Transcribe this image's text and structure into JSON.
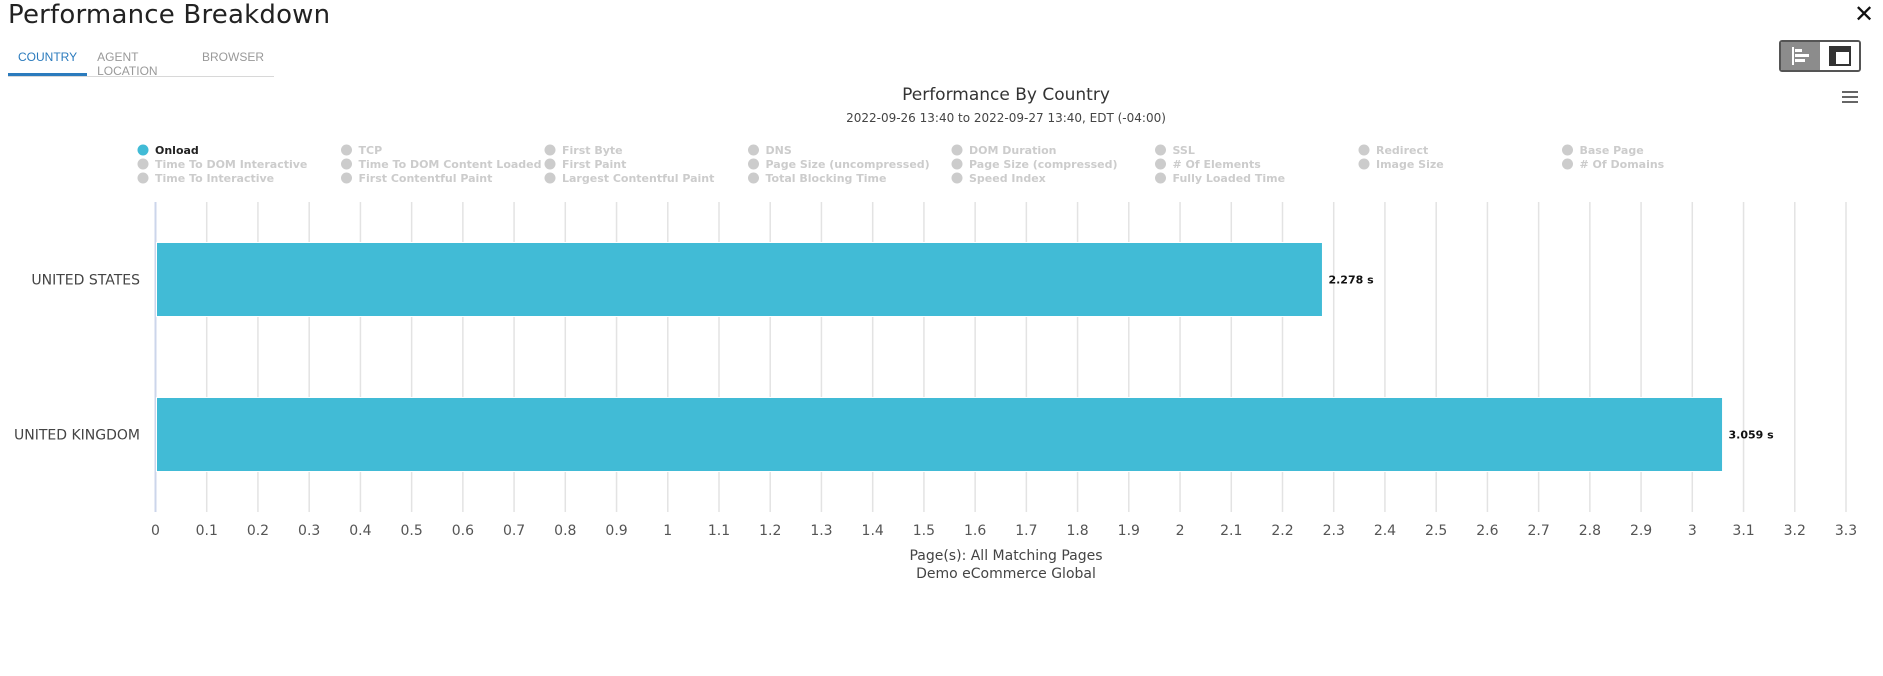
{
  "header": {
    "title": "Performance Breakdown",
    "close_label": "✕"
  },
  "tabs": [
    {
      "label": "COUNTRY",
      "active": true
    },
    {
      "label": "AGENT LOCATION",
      "active": false
    },
    {
      "label": "BROWSER",
      "active": false
    }
  ],
  "icons": {
    "view_bar": "bar-chart-view-icon",
    "view_table": "table-view-icon",
    "menu": "hamburger-menu-icon",
    "close": "close-icon"
  },
  "colors": {
    "bar": "#41bbd6",
    "legend_active": "#41bbd6",
    "legend_inactive": "#cccccc",
    "grid": "#e3e3e3",
    "tab_active": "#2b7bbd"
  },
  "chart_data": {
    "type": "bar",
    "orientation": "horizontal",
    "title": "Performance By Country",
    "subtitle": "2022-09-26 13:40 to 2022-09-27 13:40, EDT (-04:00)",
    "categories": [
      "UNITED STATES",
      "UNITED KINGDOM"
    ],
    "series": [
      {
        "name": "Onload",
        "values": [
          2.278,
          3.059
        ],
        "labels": [
          "2.278 s",
          "3.059 s"
        ]
      }
    ],
    "xlim": [
      0,
      3.3
    ],
    "xticks": [
      "0",
      "0.1",
      "0.2",
      "0.3",
      "0.4",
      "0.5",
      "0.6",
      "0.7",
      "0.8",
      "0.9",
      "1",
      "1.1",
      "1.2",
      "1.3",
      "1.4",
      "1.5",
      "1.6",
      "1.7",
      "1.8",
      "1.9",
      "2",
      "2.1",
      "2.2",
      "2.3",
      "2.4",
      "2.5",
      "2.6",
      "2.7",
      "2.8",
      "2.9",
      "3",
      "3.1",
      "3.2",
      "3.3"
    ],
    "grid": true,
    "xlabel_lines": [
      "Page(s): All Matching Pages",
      "Demo eCommerce Global"
    ],
    "legend": [
      [
        "Onload",
        "Time To DOM Interactive",
        "Time To Interactive"
      ],
      [
        "TCP",
        "Time To DOM Content Loaded",
        "First Contentful Paint"
      ],
      [
        "First Byte",
        "First Paint",
        "Largest Contentful Paint"
      ],
      [
        "DNS",
        "Page Size (uncompressed)",
        "Total Blocking Time"
      ],
      [
        "DOM Duration",
        "Page Size (compressed)",
        "Speed Index"
      ],
      [
        "SSL",
        "# Of Elements",
        "Fully Loaded Time"
      ],
      [
        "Redirect",
        "Image Size"
      ],
      [
        "Base Page",
        "# Of Domains"
      ]
    ],
    "legend_active": "Onload",
    "legend_position": "top"
  }
}
